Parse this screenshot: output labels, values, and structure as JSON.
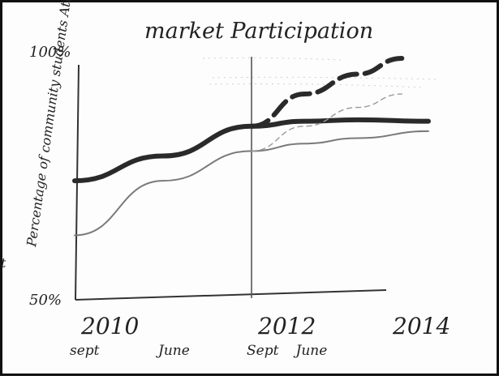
{
  "chart_data": {
    "type": "line",
    "title": "market Participation",
    "ylabel": "Percentage of community students Attending",
    "ylim": [
      50,
      100
    ],
    "y_ticks": [
      {
        "value": 100,
        "label": "100%"
      },
      {
        "value": 50,
        "label": "50%"
      }
    ],
    "x_ticks": [
      {
        "value": 2010.0,
        "label": "2010",
        "sublabel": "sept"
      },
      {
        "value": 2011.0,
        "label": "",
        "sublabel": "June"
      },
      {
        "value": 2012.0,
        "label": "2012",
        "sublabel": "Sept"
      },
      {
        "value": 2012.5,
        "label": "",
        "sublabel": "June"
      },
      {
        "value": 2014.0,
        "label": "2014",
        "sublabel": ""
      }
    ],
    "vertical_marker_x": 2012.0,
    "grid": false,
    "series": [
      {
        "style": "thick-solid",
        "color": "#2a2a2a",
        "x": [
          2010.0,
          2011.0,
          2012.0,
          2012.6,
          2013.2,
          2014.0
        ],
        "y": [
          74,
          79,
          85,
          86,
          86.3,
          86
        ]
      },
      {
        "style": "thin-solid",
        "color": "#7a7a7a",
        "x": [
          2010.0,
          2011.0,
          2012.0,
          2012.6,
          2013.2,
          2014.0
        ],
        "y": [
          63,
          74,
          80,
          81.5,
          82.6,
          84
        ]
      },
      {
        "style": "thick-dashed",
        "color": "#2a2a2a",
        "x": [
          2012.0,
          2012.6,
          2013.2,
          2013.7
        ],
        "y": [
          85,
          91.5,
          95.5,
          98.7
        ]
      },
      {
        "style": "thin-dashed",
        "color": "#9a9a9a",
        "x": [
          2012.0,
          2012.6,
          2013.2,
          2013.7
        ],
        "y": [
          80,
          85,
          88.8,
          91.5
        ]
      }
    ]
  },
  "stray_marks": {
    "right_margin_mark": "t"
  }
}
